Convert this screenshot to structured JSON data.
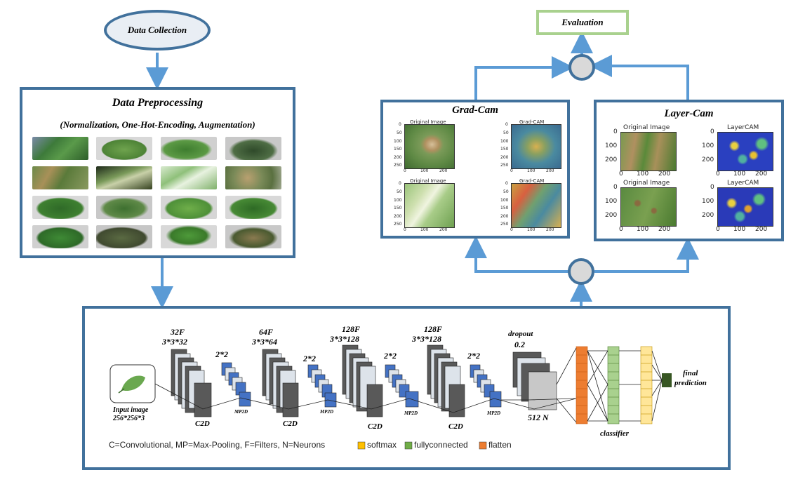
{
  "data_collection": "Data Collection",
  "preprocessing": {
    "title": "Data Preprocessing",
    "subtitle": "(Normalization, One-Hot-Encoding, Augmentation)"
  },
  "evaluation": "Evaluation",
  "gradcam": {
    "title": "Grad-Cam",
    "panels": [
      "Original Image",
      "Grad-CAM",
      "Original Image",
      "Grad-CAM"
    ],
    "yticks": [
      "0",
      "50",
      "100",
      "150",
      "200",
      "250"
    ],
    "xticks": [
      "0",
      "100",
      "200"
    ]
  },
  "layercam": {
    "title": "Layer-Cam",
    "panels": [
      "Original Image",
      "LayerCAM",
      "Original Image",
      "LayerCAM"
    ],
    "yticks": [
      "0",
      "100",
      "200"
    ],
    "xticks": [
      "0",
      "100",
      "200"
    ]
  },
  "cnn": {
    "input_label_1": "Input image",
    "input_label_2": "256*256*3",
    "blocks": [
      {
        "filters": "32F",
        "kernel": "3*3*32",
        "pool": "2*2",
        "conv": "C2D",
        "mp": "MP2D"
      },
      {
        "filters": "64F",
        "kernel": "3*3*64",
        "pool": "2*2",
        "conv": "C2D",
        "mp": "MP2D"
      },
      {
        "filters": "128F",
        "kernel": "3*3*128",
        "pool": "2*2",
        "conv": "C2D",
        "mp": "MP2D"
      },
      {
        "filters": "128F",
        "kernel": "3*3*128",
        "pool": "2*2",
        "conv": "C2D",
        "mp": "MP2D"
      }
    ],
    "dropout_1": "dropout",
    "dropout_2": "0.2",
    "neurons": "512 N",
    "classifier": "classifier",
    "final_1": "final",
    "final_2": "prediction",
    "legend_text": "C=Convolutional, MP=Max-Pooling, F=Filters, N=Neurons",
    "legend_items": [
      {
        "label": "softmax",
        "color": "#ffc000"
      },
      {
        "label": "fullyconnected",
        "color": "#70ad47"
      },
      {
        "label": "flatten",
        "color": "#ed7d31"
      }
    ]
  },
  "colors": {
    "box_border": "#41719c",
    "arrow": "#5b9bd5",
    "eval_border": "#a9d18e",
    "conv": "#595959",
    "pool": "#4472c4"
  }
}
